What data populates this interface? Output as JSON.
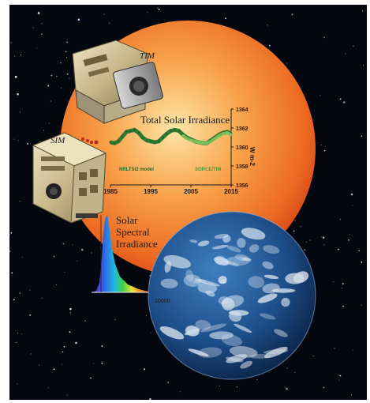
{
  "labels": {
    "tim": "TIM",
    "sim": "SIM",
    "chart_title": "Total Solar Irradiance",
    "spectral_line1": "Solar",
    "spectral_line2": "Spectral",
    "spectral_line3": "Irradiance",
    "spectral_axis_value": "10000"
  },
  "chart_data": {
    "type": "line",
    "title": "Total Solar Irradiance",
    "xlabel": "",
    "ylabel": "W m-2",
    "xlim": [
      1985,
      2015
    ],
    "ylim": [
      1356,
      1364
    ],
    "x_ticks": [
      1985,
      1995,
      2005,
      2015
    ],
    "y_ticks": [
      1364,
      1362,
      1360,
      1358,
      1356
    ],
    "series": [
      {
        "name": "NRLTSI2 model",
        "color": "#1f6f2a",
        "x": [
          1985,
          1986,
          1987,
          1988,
          1989,
          1990,
          1991,
          1992,
          1993,
          1994,
          1995,
          1996,
          1997,
          1998,
          1999,
          2000,
          2001,
          2002,
          2003,
          2004,
          2005,
          2006,
          2007,
          2008,
          2009,
          2010,
          2011,
          2012,
          2013,
          2014,
          2015
        ],
        "values": [
          1360.5,
          1360.4,
          1360.6,
          1361.1,
          1361.6,
          1361.7,
          1361.8,
          1361.5,
          1361.0,
          1360.7,
          1360.6,
          1360.5,
          1360.6,
          1361.0,
          1361.4,
          1361.7,
          1361.8,
          1361.7,
          1361.3,
          1361.0,
          1360.8,
          1360.6,
          1360.5,
          1360.4,
          1360.4,
          1360.7,
          1361.0,
          1361.3,
          1361.5,
          1361.6,
          1361.4
        ]
      },
      {
        "name": "SORCE/TIM",
        "color": "#7cc35a",
        "x": [
          2003,
          2004,
          2005,
          2006,
          2007,
          2008,
          2009,
          2010,
          2011,
          2012,
          2013,
          2014,
          2015
        ],
        "values": [
          1361.2,
          1360.9,
          1360.7,
          1360.6,
          1360.5,
          1360.4,
          1360.4,
          1360.6,
          1360.9,
          1361.2,
          1361.4,
          1361.5,
          1361.3
        ]
      }
    ],
    "legend": "inside-bottom"
  },
  "colors": {
    "space": "#05070f",
    "sun_core": "#fde6a8",
    "sun_mid": "#f8a24a",
    "sun_edge": "#e4551c",
    "chart_line": "#1f6f2a",
    "chart_line_light": "#7cc35a",
    "earth_ocean": "#1d4f8a"
  }
}
